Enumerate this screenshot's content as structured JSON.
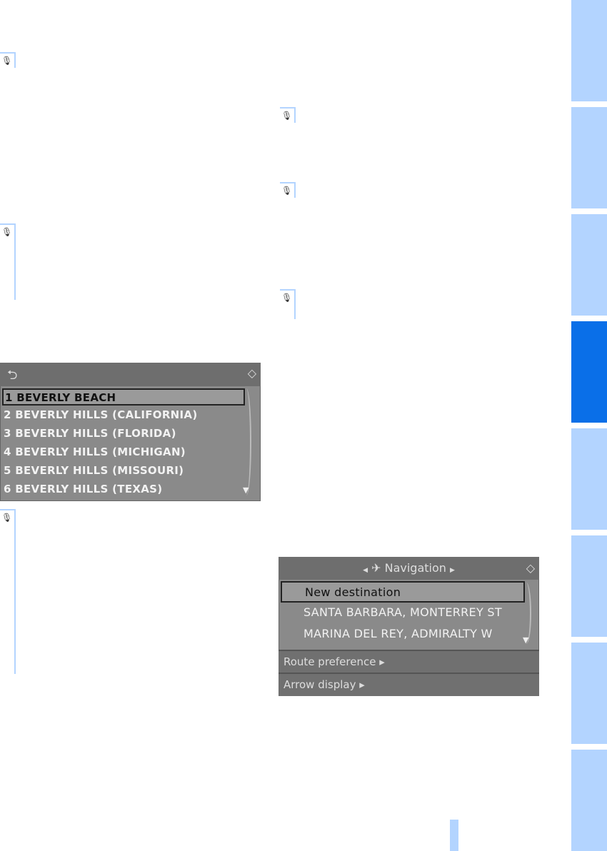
{
  "side_tabs": [
    {
      "active": false
    },
    {
      "active": false
    },
    {
      "active": false
    },
    {
      "active": true
    },
    {
      "active": false
    },
    {
      "active": false
    },
    {
      "active": false
    },
    {
      "active": false
    }
  ],
  "colors": {
    "tab": "#b3d4ff",
    "tab_active": "#0a6fe8",
    "screen": "#8a8a8a"
  },
  "voice_icon": "voice-command-icon",
  "screen1": {
    "header_icon": "back-arrow-icon",
    "items": [
      "1 BEVERLY BEACH",
      "2 BEVERLY HILLS (CALIFORNIA)",
      "3 BEVERLY HILLS (FLORIDA)",
      "4 BEVERLY HILLS (MICHIGAN)",
      "5 BEVERLY HILLS (MISSOURI)",
      "6 BEVERLY HILLS (TEXAS)"
    ]
  },
  "screen2": {
    "title": "Navigation",
    "items": [
      "New destination",
      "SANTA BARBARA, MONTERREY ST",
      "MARINA DEL REY, ADMIRALTY W"
    ],
    "submenus": [
      "Route preference",
      "Arrow display"
    ]
  }
}
